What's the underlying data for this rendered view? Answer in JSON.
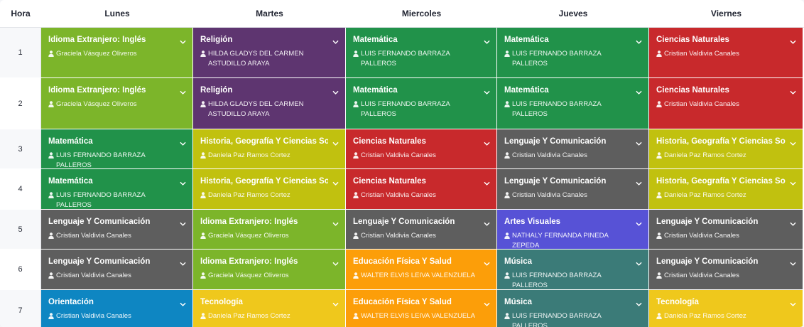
{
  "header": {
    "hour": "Hora",
    "days": [
      "Lunes",
      "Martes",
      "Miercoles",
      "Jueves",
      "Viernes"
    ]
  },
  "colors": {
    "green_light": "#7cb52a",
    "purple": "#5e3570",
    "green": "#21924a",
    "red": "#c8292c",
    "olive": "#c1c10f",
    "gray": "#5e5e5e",
    "blue": "#0e86c2",
    "yellow": "#efc81c",
    "orange": "#fc9e09",
    "teal": "#3b7b78",
    "indigo": "#5752d6"
  },
  "rows": [
    {
      "hour": "1",
      "slots": [
        {
          "subject": "Idioma Extranjero: Inglés",
          "teacher": "Graciela Vásquez Oliveros",
          "color": "#7cb52a"
        },
        {
          "subject": "Religión",
          "teacher": "HILDA GLADYS DEL CARMEN ASTUDILLO ARAYA",
          "color": "#5e3570"
        },
        {
          "subject": "Matemática",
          "teacher": "LUIS FERNANDO BARRAZA PALLEROS",
          "color": "#21924a"
        },
        {
          "subject": "Matemática",
          "teacher": "LUIS FERNANDO BARRAZA PALLEROS",
          "color": "#21924a"
        },
        {
          "subject": "Ciencias Naturales",
          "teacher": "Cristian Valdivia Canales",
          "color": "#c8292c"
        }
      ]
    },
    {
      "hour": "2",
      "slots": [
        {
          "subject": "Idioma Extranjero: Inglés",
          "teacher": "Graciela Vásquez Oliveros",
          "color": "#7cb52a"
        },
        {
          "subject": "Religión",
          "teacher": "HILDA GLADYS DEL CARMEN ASTUDILLO ARAYA",
          "color": "#5e3570"
        },
        {
          "subject": "Matemática",
          "teacher": "LUIS FERNANDO BARRAZA PALLEROS",
          "color": "#21924a"
        },
        {
          "subject": "Matemática",
          "teacher": "LUIS FERNANDO BARRAZA PALLEROS",
          "color": "#21924a"
        },
        {
          "subject": "Ciencias Naturales",
          "teacher": "Cristian Valdivia Canales",
          "color": "#c8292c"
        }
      ]
    },
    {
      "hour": "3",
      "slots": [
        {
          "subject": "Matemática",
          "teacher": "LUIS FERNANDO BARRAZA PALLEROS",
          "color": "#21924a"
        },
        {
          "subject": "Historia, Geografía Y Ciencias So",
          "teacher": "Daniela Paz Ramos Cortez",
          "color": "#c1c10f"
        },
        {
          "subject": "Ciencias Naturales",
          "teacher": "Cristian Valdivia Canales",
          "color": "#c8292c"
        },
        {
          "subject": "Lenguaje Y Comunicación",
          "teacher": "Cristian Valdivia Canales",
          "color": "#5e5e5e"
        },
        {
          "subject": "Historia, Geografía Y Ciencias So",
          "teacher": "Daniela Paz Ramos Cortez",
          "color": "#c1c10f"
        }
      ]
    },
    {
      "hour": "4",
      "slots": [
        {
          "subject": "Matemática",
          "teacher": "LUIS FERNANDO BARRAZA PALLEROS",
          "color": "#21924a"
        },
        {
          "subject": "Historia, Geografía Y Ciencias So",
          "teacher": "Daniela Paz Ramos Cortez",
          "color": "#c1c10f"
        },
        {
          "subject": "Ciencias Naturales",
          "teacher": "Cristian Valdivia Canales",
          "color": "#c8292c"
        },
        {
          "subject": "Lenguaje Y Comunicación",
          "teacher": "Cristian Valdivia Canales",
          "color": "#5e5e5e"
        },
        {
          "subject": "Historia, Geografía Y Ciencias So",
          "teacher": "Daniela Paz Ramos Cortez",
          "color": "#c1c10f"
        }
      ]
    },
    {
      "hour": "5",
      "slots": [
        {
          "subject": "Lenguaje Y Comunicación",
          "teacher": "Cristian Valdivia Canales",
          "color": "#5e5e5e"
        },
        {
          "subject": "Idioma Extranjero: Inglés",
          "teacher": "Graciela Vásquez Oliveros",
          "color": "#7cb52a"
        },
        {
          "subject": "Lenguaje Y Comunicación",
          "teacher": "Cristian Valdivia Canales",
          "color": "#5e5e5e"
        },
        {
          "subject": "Artes Visuales",
          "teacher": "NATHALY FERNANDA PINEDA ZEPEDA",
          "color": "#5752d6"
        },
        {
          "subject": "Lenguaje Y Comunicación",
          "teacher": "Cristian Valdivia Canales",
          "color": "#5e5e5e"
        }
      ]
    },
    {
      "hour": "6",
      "slots": [
        {
          "subject": "Lenguaje Y Comunicación",
          "teacher": "Cristian Valdivia Canales",
          "color": "#5e5e5e"
        },
        {
          "subject": "Idioma Extranjero: Inglés",
          "teacher": "Graciela Vásquez Oliveros",
          "color": "#7cb52a"
        },
        {
          "subject": "Educación Física Y Salud",
          "teacher": "WALTER ELVIS LEIVA VALENZUELA",
          "color": "#fc9e09"
        },
        {
          "subject": "Música",
          "teacher": "LUIS FERNANDO BARRAZA PALLEROS",
          "color": "#3b7b78"
        },
        {
          "subject": "Lenguaje Y Comunicación",
          "teacher": "Cristian Valdivia Canales",
          "color": "#5e5e5e"
        }
      ]
    },
    {
      "hour": "7",
      "slots": [
        {
          "subject": "Orientación",
          "teacher": "Cristian Valdivia Canales",
          "color": "#0e86c2"
        },
        {
          "subject": "Tecnología",
          "teacher": "Daniela Paz Ramos Cortez",
          "color": "#efc81c"
        },
        {
          "subject": "Educación Física Y Salud",
          "teacher": "WALTER ELVIS LEIVA VALENZUELA",
          "color": "#fc9e09"
        },
        {
          "subject": "Música",
          "teacher": "LUIS FERNANDO BARRAZA PALLEROS",
          "color": "#3b7b78"
        },
        {
          "subject": "Tecnología",
          "teacher": "Daniela Paz Ramos Cortez",
          "color": "#efc81c"
        }
      ]
    }
  ]
}
